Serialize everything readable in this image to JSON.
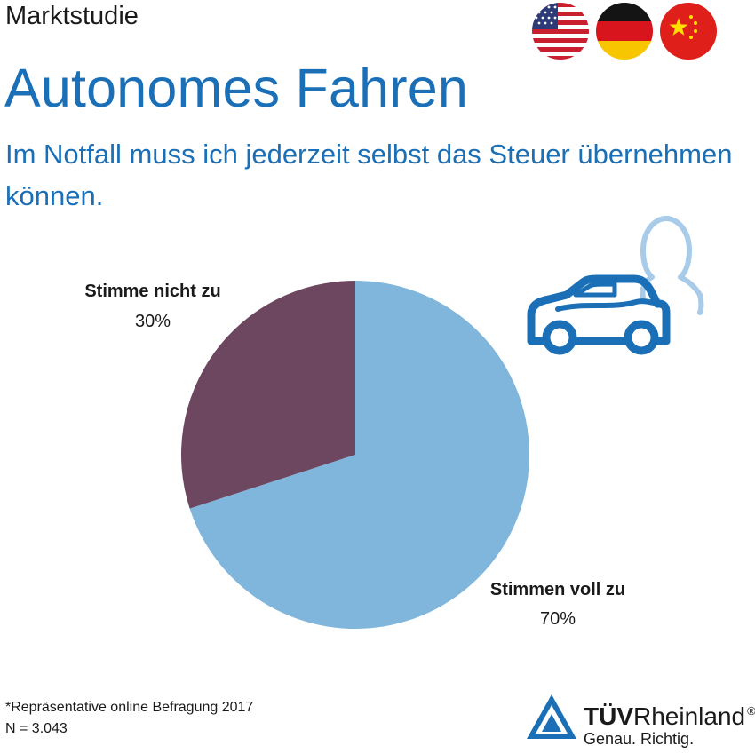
{
  "header": {
    "kicker": "Marktstudie",
    "title": "Autonomes Fahren",
    "subtitle": "Im Notfall muss ich jederzeit selbst das Steuer übernehmen können."
  },
  "icons": {
    "flags": [
      "us-flag-icon",
      "germany-flag-icon",
      "china-flag-icon"
    ],
    "illustration": "car-with-driver-icon"
  },
  "colors": {
    "accent": "#1a6fb6",
    "slice_agree": "#80b6dc",
    "slice_disagree": "#6d4660",
    "icon_outline": "#1a6fb6",
    "icon_person": "#a7cbe8"
  },
  "chart_data": {
    "type": "pie",
    "title": "",
    "slices": [
      {
        "label": "Stimmen voll zu",
        "value": 70,
        "display": "70%",
        "color": "#80b6dc"
      },
      {
        "label": "Stimme nicht zu",
        "value": 30,
        "display": "30%",
        "color": "#6d4660"
      }
    ]
  },
  "footer": {
    "note": "*Repräsentative online Befragung 2017",
    "sample": "N = 3.043"
  },
  "logo": {
    "brand_bold": "TÜV",
    "brand_regular": "Rheinland",
    "registered": "®",
    "slogan": "Genau. Richtig."
  }
}
